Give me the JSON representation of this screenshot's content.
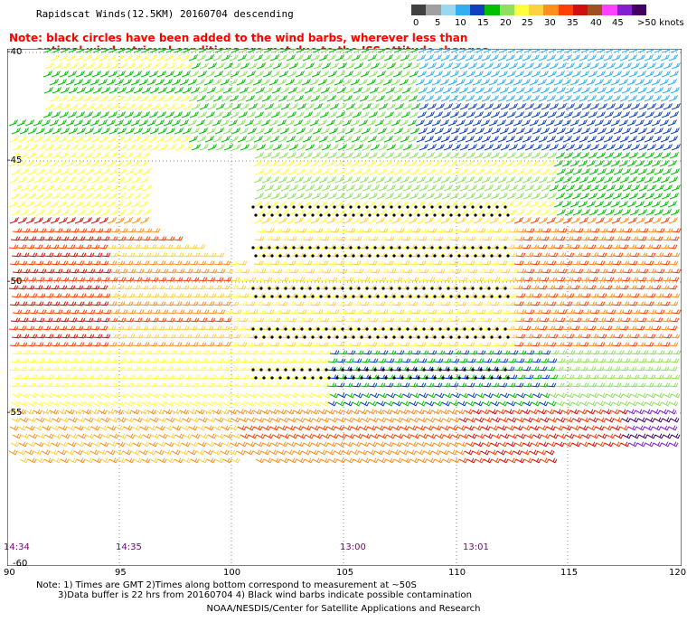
{
  "title": "Rapidscat Winds(12.5KM) 20160704 descending",
  "note": {
    "line1": "Note: black circles have been added to the wind barbs, wherever less than",
    "line2": "optimal wind retrieval conditions are met due to the ISS attitude changes."
  },
  "legend": {
    "unit": "knots",
    "labels": [
      "0",
      "5",
      "10",
      "15",
      "20",
      "25",
      "30",
      "35",
      "40",
      "45",
      ">50 knots"
    ],
    "colors": [
      "#404040",
      "#a0a0a0",
      "#9ad8f0",
      "#30b0f0",
      "#1040c0",
      "#00c000",
      "#90e060",
      "#ffff40",
      "#ffd040",
      "#ff9020",
      "#ff4000",
      "#d01010",
      "#a05020",
      "#ff40ff",
      "#8020d0",
      "#400060"
    ]
  },
  "map": {
    "lon_labels": [
      "90",
      "95",
      "100",
      "105",
      "110",
      "115",
      "120"
    ],
    "lat_labels": [
      "-40",
      "-45",
      "-50",
      "-55",
      "-60"
    ],
    "time_labels": [
      "14:34",
      "14:35",
      "13:00",
      "13:01"
    ],
    "flagged_note": "black circles mark less-than-optimal retrievals"
  },
  "footnote": {
    "line1": "Note: 1) Times are GMT 2)Times along bottom correspond to measurement at ~50S",
    "line2": "3)Data buffer is 22 hrs from 20160704 4) Black wind barbs indicate possible contamination"
  },
  "credit": "NOAA/NESDIS/Center for Satellite Applications and Research"
}
